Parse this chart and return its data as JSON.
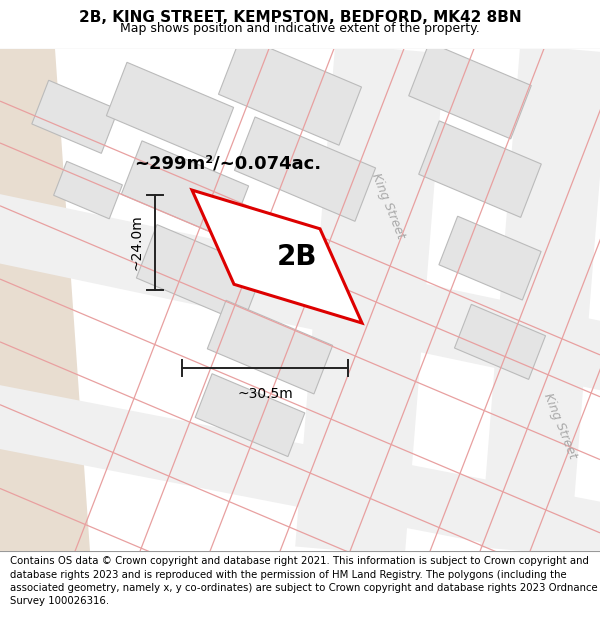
{
  "title": "2B, KING STREET, KEMPSTON, BEDFORD, MK42 8BN",
  "subtitle": "Map shows position and indicative extent of the property.",
  "footer": "Contains OS data © Crown copyright and database right 2021. This information is subject to Crown copyright and database rights 2023 and is reproduced with the permission of HM Land Registry. The polygons (including the associated geometry, namely x, y co-ordinates) are subject to Crown copyright and database rights 2023 Ordnance Survey 100026316.",
  "map_bg": "#f7f7f7",
  "block_fill": "#e4e4e4",
  "block_edge": "#bbbbbb",
  "pink_line": "#e8a0a0",
  "red_poly_edge": "#dd0000",
  "dim_color": "#222222",
  "area_label": "~299m²/~0.074ac.",
  "plot_label": "2B",
  "dim_width": "~30.5m",
  "dim_height": "~24.0m",
  "street_label1": "King Street",
  "street_label2": "King Street",
  "title_fontsize": 11,
  "subtitle_fontsize": 9,
  "footer_fontsize": 7.3
}
